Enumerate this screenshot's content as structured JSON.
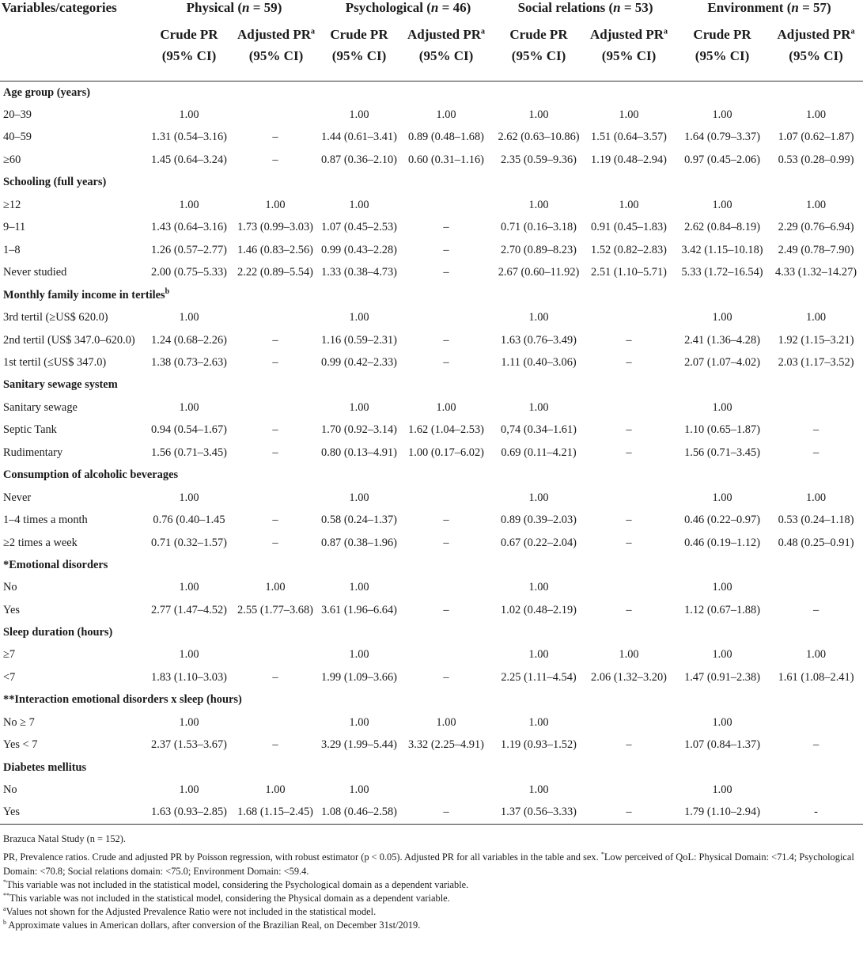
{
  "header": {
    "var_col": "Variables/categories",
    "domains": [
      {
        "name": "Physical",
        "n_label": "n",
        "n_value": "= 59"
      },
      {
        "name": "Psychological",
        "n_label": "n",
        "n_value": "= 46"
      },
      {
        "name": "Social relations",
        "n_label": "n",
        "n_value": "= 53"
      },
      {
        "name": "Environment",
        "n_label": "n",
        "n_value": "= 57"
      }
    ],
    "crude_line1": "Crude PR",
    "adjusted_line1": "Adjusted PR",
    "adjusted_sup": "a",
    "ci_line2": "(95% CI)"
  },
  "sections": [
    {
      "title": "Age group (years)",
      "title_sup": "",
      "rows": [
        {
          "label": "20–39",
          "cells": [
            "1.00",
            "",
            "1.00",
            "1.00",
            "1.00",
            "1.00",
            "1.00",
            "1.00"
          ]
        },
        {
          "label": "40–59",
          "cells": [
            "1.31 (0.54–3.16)",
            "–",
            "1.44 (0.61–3.41)",
            "0.89 (0.48–1.68)",
            "2.62 (0.63–10.86)",
            "1.51 (0.64–3.57)",
            "1.64 (0.79–3.37)",
            "1.07 (0.62–1.87)"
          ]
        },
        {
          "label": "≥60",
          "cells": [
            "1.45 (0.64–3.24)",
            "–",
            "0.87 (0.36–2.10)",
            "0.60 (0.31–1.16)",
            "2.35 (0.59–9.36)",
            "1.19 (0.48–2.94)",
            "0.97 (0.45–2.06)",
            "0.53 (0.28–0.99)"
          ]
        }
      ]
    },
    {
      "title": "Schooling (full years)",
      "title_sup": "",
      "rows": [
        {
          "label": "≥12",
          "cells": [
            "1.00",
            "1.00",
            "1.00",
            "",
            "1.00",
            "1.00",
            "1.00",
            "1.00"
          ]
        },
        {
          "label": "9–11",
          "cells": [
            "1.43 (0.64–3.16)",
            "1.73 (0.99–3.03)",
            "1.07 (0.45–2.53)",
            "–",
            "0.71 (0.16–3.18)",
            "0.91 (0.45–1.83)",
            "2.62 (0.84–8.19)",
            "2.29 (0.76–6.94)"
          ]
        },
        {
          "label": "1–8",
          "cells": [
            "1.26 (0.57–2.77)",
            "1.46 (0.83–2.56)",
            "0.99 (0.43–2.28)",
            "–",
            "2.70 (0.89–8.23)",
            "1.52 (0.82–2.83)",
            "3.42 (1.15–10.18)",
            "2.49 (0.78–7.90)"
          ]
        },
        {
          "label": "Never studied",
          "cells": [
            "2.00 (0.75–5.33)",
            "2.22 (0.89–5.54)",
            "1.33 (0.38–4.73)",
            "–",
            "2.67 (0.60–11.92)",
            "2.51 (1.10–5.71)",
            "5.33 (1.72–16.54)",
            "4.33 (1.32–14.27)"
          ]
        }
      ]
    },
    {
      "title": "Monthly family income in tertiles",
      "title_sup": "b",
      "rows": [
        {
          "label": "3rd tertil (≥US$ 620.0)",
          "cells": [
            "1.00",
            "",
            "1.00",
            "",
            "1.00",
            "",
            "1.00",
            "1.00"
          ]
        },
        {
          "label": "2nd tertil (US$ 347.0–620.0)",
          "cells": [
            "1.24 (0.68–2.26)",
            "–",
            "1.16 (0.59–2.31)",
            "–",
            "1.63 (0.76–3.49)",
            "–",
            "2.41 (1.36–4.28)",
            "1.92 (1.15–3.21)"
          ]
        },
        {
          "label": "1st tertil (≤US$ 347.0)",
          "cells": [
            "1.38 (0.73–2.63)",
            "–",
            "0.99 (0.42–2.33)",
            "–",
            "1.11 (0.40–3.06)",
            "–",
            "2.07 (1.07–4.02)",
            "2.03 (1.17–3.52)"
          ]
        }
      ]
    },
    {
      "title": "Sanitary sewage system",
      "title_sup": "",
      "rows": [
        {
          "label": "Sanitary sewage",
          "cells": [
            "1.00",
            "",
            "1.00",
            "1.00",
            "1.00",
            "",
            "1.00",
            ""
          ]
        },
        {
          "label": "Septic Tank",
          "cells": [
            "0.94 (0.54–1.67)",
            "–",
            "1.70 (0.92–3.14)",
            "1.62 (1.04–2.53)",
            "0,74 (0.34–1.61)",
            "–",
            "1.10 (0.65–1.87)",
            "–"
          ]
        },
        {
          "label": "Rudimentary",
          "cells": [
            "1.56 (0.71–3.45)",
            "–",
            "0.80 (0.13–4.91)",
            "1.00 (0.17–6.02)",
            "0.69 (0.11–4.21)",
            "–",
            "1.56 (0.71–3.45)",
            "–"
          ]
        }
      ]
    },
    {
      "title": "Consumption of alcoholic beverages",
      "title_sup": "",
      "rows": [
        {
          "label": "Never",
          "cells": [
            "1.00",
            "",
            "1.00",
            "",
            "1.00",
            "",
            "1.00",
            "1.00"
          ]
        },
        {
          "label": "1–4 times a month",
          "cells": [
            "0.76 (0.40–1.45",
            "–",
            "0.58 (0.24–1.37)",
            "–",
            "0.89 (0.39–2.03)",
            "–",
            "0.46 (0.22–0.97)",
            "0.53 (0.24–1.18)"
          ]
        },
        {
          "label": "≥2 times a week",
          "cells": [
            "0.71 (0.32–1.57)",
            "–",
            "0.87 (0.38–1.96)",
            "–",
            "0.67 (0.22–2.04)",
            "–",
            "0.46 (0.19–1.12)",
            "0.48 (0.25–0.91)"
          ]
        }
      ]
    },
    {
      "title": "*Emotional disorders",
      "title_sup": "",
      "rows": [
        {
          "label": "No",
          "cells": [
            "1.00",
            "1.00",
            "1.00",
            "",
            "1.00",
            "",
            "1.00",
            ""
          ]
        },
        {
          "label": "Yes",
          "cells": [
            "2.77 (1.47–4.52)",
            "2.55 (1.77–3.68)",
            "3.61 (1.96–6.64)",
            "–",
            "1.02 (0.48–2.19)",
            "–",
            "1.12 (0.67–1.88)",
            "–"
          ]
        }
      ]
    },
    {
      "title": "Sleep duration (hours)",
      "title_sup": "",
      "rows": [
        {
          "label": "≥7",
          "cells": [
            "1.00",
            "",
            "1.00",
            "",
            "1.00",
            "1.00",
            "1.00",
            "1.00"
          ]
        },
        {
          "label": "<7",
          "cells": [
            "1.83 (1.10–3.03)",
            "–",
            "1.99 (1.09–3.66)",
            "–",
            "2.25 (1.11–4.54)",
            "2.06 (1.32–3.20)",
            "1.47 (0.91–2.38)",
            "1.61 (1.08–2.41)"
          ]
        }
      ]
    },
    {
      "title": "**Interaction emotional disorders x sleep (hours)",
      "title_sup": "",
      "rows": [
        {
          "label": "No ≥ 7",
          "cells": [
            "1.00",
            "",
            "1.00",
            "1.00",
            "1.00",
            "",
            "1.00",
            ""
          ]
        },
        {
          "label": "Yes < 7",
          "cells": [
            "2.37 (1.53–3.67)",
            "–",
            "3.29 (1.99–5.44)",
            "3.32 (2.25–4.91)",
            "1.19 (0.93–1.52)",
            "–",
            "1.07 (0.84–1.37)",
            "–"
          ]
        }
      ]
    },
    {
      "title": "Diabetes mellitus",
      "title_sup": "",
      "rows": [
        {
          "label": "No",
          "cells": [
            "1.00",
            "1.00",
            "1.00",
            "",
            "1.00",
            "",
            "1.00",
            ""
          ]
        },
        {
          "label": "Yes",
          "cells": [
            "1.63 (0.93–2.85)",
            "1.68 (1.15–2.45)",
            "1.08 (0.46–2.58)",
            "–",
            "1.37 (0.56–3.33)",
            "–",
            "1.79 (1.10–2.94)",
            "-"
          ]
        }
      ]
    }
  ],
  "notes": {
    "study": "Brazuca Natal Study (n = 152).",
    "pr_def_part1": "PR, Prevalence ratios. Crude and adjusted PR by Poisson regression, with robust estimator (p < 0.05). Adjusted PR for all variables in the table and sex.",
    "pr_def_sup": "*",
    "pr_def_part2": "Low perceived of QoL: Physical Domain: <71.4; Psychological Domain: <70.8; Social relations domain: <75.0; Environment Domain: <59.4.",
    "note_star_sup": "*",
    "note_star": "This variable was not included in the statistical model, considering the Psychological domain as a dependent variable.",
    "note_dstar_sup": "**",
    "note_dstar": "This variable was not included in the statistical model, considering the Physical domain as a dependent variable.",
    "note_a_sup": "a",
    "note_a": "Values not shown for the Adjusted Prevalence Ratio were not included in the statistical model.",
    "note_b_sup": "b",
    "note_b": "Approximate values in American dollars, after conversion of the Brazilian Real, on December 31st/2019."
  }
}
